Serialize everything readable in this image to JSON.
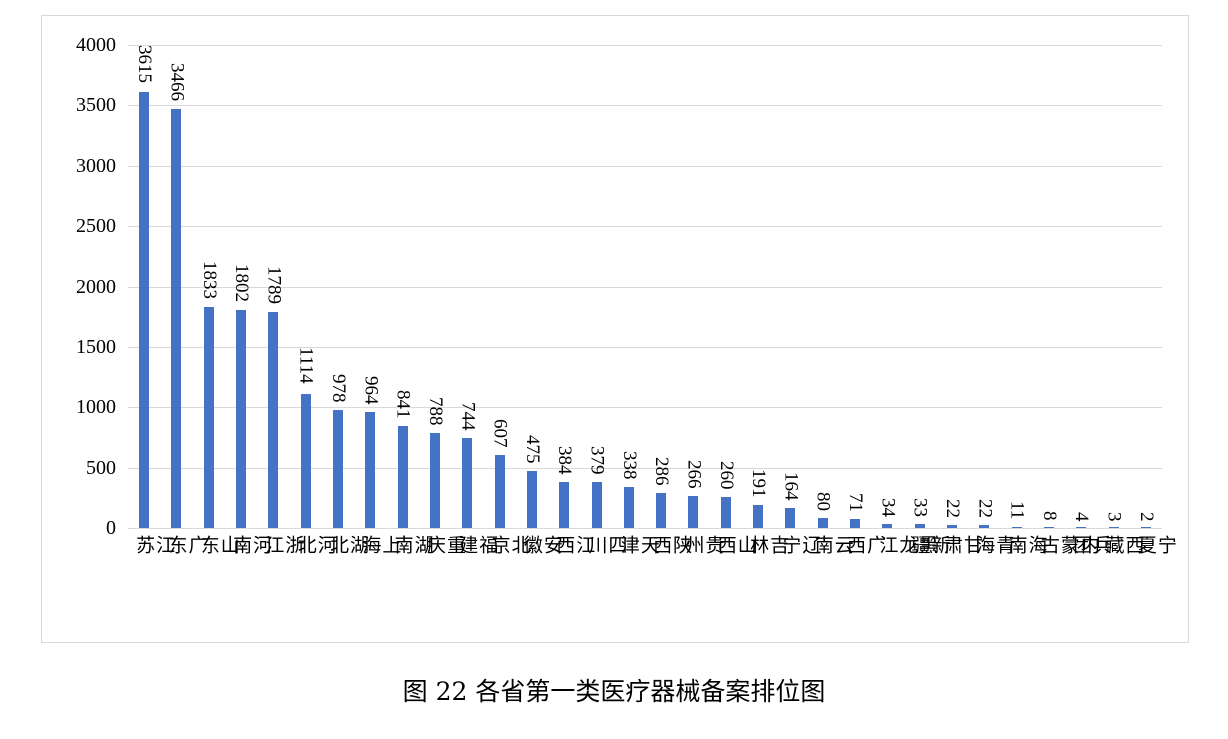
{
  "caption": "图 22  各省第一类医疗器械备案排位图",
  "chart_data": {
    "type": "bar",
    "title": "",
    "caption": "图 22 各省第一类医疗器械备案排位图",
    "xlabel": "",
    "ylabel": "",
    "ylim": [
      0,
      4000
    ],
    "yticks": [
      0,
      500,
      1000,
      1500,
      2000,
      2500,
      3000,
      3500,
      4000
    ],
    "grid": true,
    "legend": null,
    "bar_color": "#4472c4",
    "data_labels": true,
    "categories": [
      "江苏",
      "广东",
      "山东",
      "河南",
      "浙江",
      "河北",
      "湖北",
      "上海",
      "湖南",
      "重庆",
      "福建",
      "北京",
      "安徽",
      "江西",
      "四川",
      "天津",
      "陕西",
      "贵州",
      "山西",
      "吉林",
      "辽宁",
      "云南",
      "广西",
      "黑龙江",
      "新疆",
      "甘肃",
      "青海",
      "海南",
      "内蒙古",
      "兵团",
      "西藏",
      "宁夏"
    ],
    "values": [
      3615,
      3466,
      1833,
      1802,
      1789,
      1114,
      978,
      964,
      841,
      788,
      744,
      607,
      475,
      384,
      379,
      338,
      286,
      266,
      260,
      191,
      164,
      80,
      71,
      34,
      33,
      22,
      22,
      11,
      8,
      4,
      3,
      2
    ]
  }
}
